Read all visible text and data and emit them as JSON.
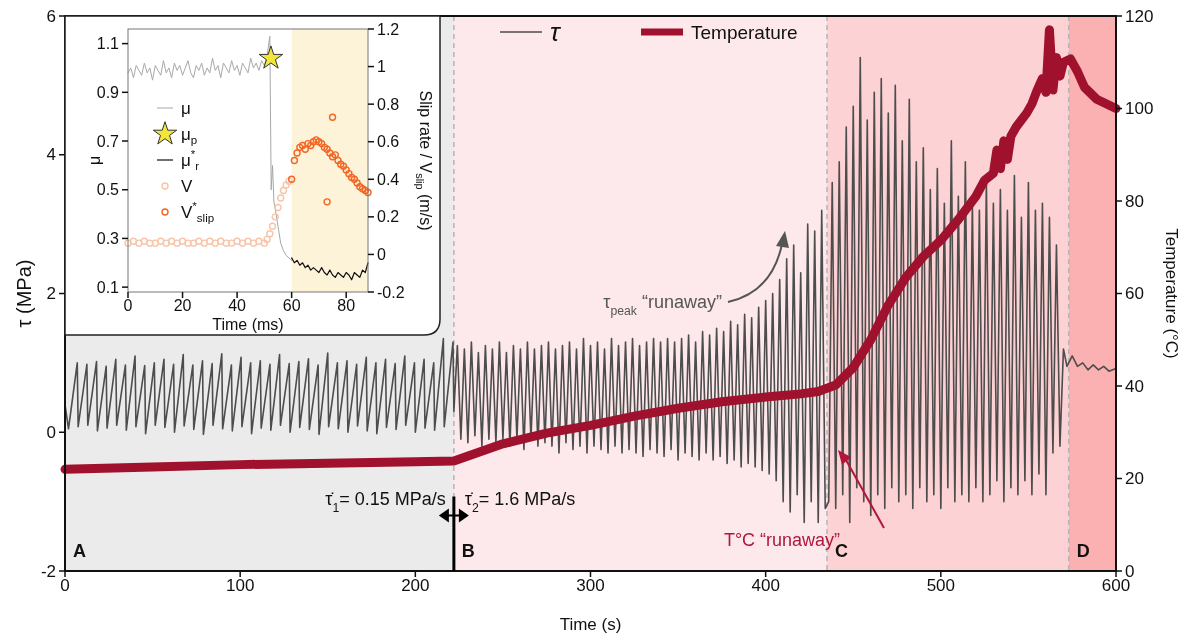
{
  "chart_data": [
    {
      "type": "line",
      "xlabel": "Time (s)",
      "ylabel": "τ (MPa)",
      "y2label": "Temperature (°C)",
      "xlim": [
        0,
        600
      ],
      "xticks": [
        0,
        100,
        200,
        300,
        400,
        500,
        600
      ],
      "ylim": [
        -2,
        6
      ],
      "yticks": [
        -2,
        0,
        2,
        4,
        6
      ],
      "y2lim": [
        0,
        120
      ],
      "y2ticks": [
        0,
        20,
        40,
        60,
        80,
        100,
        120
      ],
      "legend": "top",
      "bands": [
        {
          "axis": "x",
          "from": 0,
          "to": 222,
          "label": "A",
          "color": "#ebebeb"
        },
        {
          "axis": "x",
          "from": 222,
          "to": 435,
          "label": "B",
          "color": "#fde9eb"
        },
        {
          "axis": "x",
          "from": 435,
          "to": 573,
          "label": "C",
          "color": "#fdd2d4"
        },
        {
          "axis": "x",
          "from": 573,
          "to": 600,
          "label": "D",
          "color": "#fbb0b1"
        }
      ],
      "ref_lines": [
        {
          "axis": "x",
          "value": 222,
          "color": "#b5b5b5",
          "line_style": "dashed"
        },
        {
          "axis": "x",
          "value": 435,
          "color": "#b5b5b5",
          "line_style": "dashed"
        },
        {
          "axis": "x",
          "value": 573,
          "color": "#b5b5b5",
          "line_style": "dashed"
        }
      ],
      "annotations": [
        {
          "text": "τ̇$_{1}$= 0.15 MPa/s",
          "x": 222,
          "y": -1.2
        },
        {
          "text": "τ̇$_{2}$= 1.6 MPa/s",
          "x": 222,
          "y": -1.2
        },
        "τ$_{peak}$ “runaway”",
        "T°C “runaway”"
      ],
      "series": [
        {
          "name": "τ",
          "color": "#4d4d4d",
          "x": [
            0,
            2,
            7,
            7.5,
            12.5,
            13,
            18,
            18.5,
            23.5,
            24,
            29,
            29.5,
            34.5,
            35,
            40,
            40.5,
            45.5,
            46,
            51,
            51.5,
            56.5,
            57,
            62,
            62.5,
            67.5,
            68,
            73,
            73.5,
            78.5,
            79,
            84,
            84.5,
            89.5,
            90,
            95,
            95.5,
            100.5,
            101,
            106,
            106.5,
            111.5,
            112,
            117,
            117.5,
            122.5,
            123,
            128,
            128.5,
            133.5,
            134,
            139,
            139.5,
            144.5,
            145,
            150,
            150.5,
            155.5,
            156,
            161,
            161.5,
            166.5,
            167,
            172,
            172.5,
            177.5,
            178,
            183,
            183.5,
            188.5,
            189,
            194,
            194.5,
            199.5,
            200,
            205,
            205.5,
            210.5,
            211,
            216,
            216.5,
            221.5,
            222,
            224,
            226,
            228,
            230,
            232,
            234,
            236,
            238,
            240,
            242,
            244,
            246,
            248,
            250,
            252,
            254,
            256,
            258,
            260,
            262,
            264,
            266,
            268,
            270,
            272,
            274,
            276,
            278,
            280,
            282,
            284,
            286,
            288,
            290,
            292,
            294,
            296,
            298,
            300,
            302,
            304,
            306,
            308,
            310,
            312,
            314,
            316,
            318,
            320,
            322,
            324,
            326,
            328,
            330,
            332,
            334,
            336,
            338,
            340,
            342,
            344,
            346,
            348,
            350,
            352,
            354,
            356,
            358,
            360,
            362,
            364,
            366,
            368,
            370,
            372,
            374,
            376,
            378,
            380,
            382,
            384,
            386,
            388,
            390,
            392,
            394,
            396,
            398,
            400,
            402,
            404,
            406,
            408,
            410,
            412,
            414,
            416,
            418,
            420,
            422,
            424,
            426,
            428,
            430,
            432,
            434,
            436,
            438,
            440,
            442,
            444,
            446,
            448,
            450,
            452,
            454,
            456,
            458,
            460,
            462,
            464,
            466,
            468,
            470,
            472,
            474,
            476,
            478,
            480,
            482,
            484,
            486,
            488,
            490,
            492,
            494,
            496,
            498,
            500,
            502,
            504,
            506,
            508,
            510,
            512,
            514,
            516,
            518,
            520,
            522,
            524,
            526,
            528,
            530,
            532,
            534,
            536,
            538,
            540,
            542,
            544,
            546,
            548,
            550,
            552,
            554,
            556,
            558,
            560,
            562,
            564,
            566,
            568,
            570,
            572,
            575,
            578,
            581,
            584,
            587,
            590,
            593,
            596,
            600
          ],
          "values": [
            0.4,
            0.05,
            1.0,
            0.08,
            0.98,
            0.1,
            1.02,
            0.02,
            0.95,
            0.06,
            1.05,
            0.1,
            0.97,
            0.03,
            1.1,
            0.08,
            0.96,
            -0.02,
            1.0,
            0.1,
            1.05,
            0.07,
            0.98,
            0.0,
            1.12,
            0.09,
            0.97,
            0.04,
            1.03,
            -0.03,
            0.99,
            0.1,
            1.13,
            0.05,
            0.97,
            0.02,
            1.08,
            0.08,
            1.0,
            -0.02,
            1.03,
            0.06,
            0.98,
            0.03,
            1.12,
            0.1,
            0.99,
            0.0,
            1.02,
            0.07,
            1.06,
            0.04,
            0.97,
            -0.03,
            1.14,
            0.08,
            1.0,
            0.05,
            1.03,
            0.0,
            0.98,
            0.09,
            1.08,
            0.02,
            1.0,
            -0.02,
            1.05,
            0.07,
            0.99,
            0.04,
            1.1,
            0.1,
            1.0,
            0.0,
            1.05,
            0.06,
            1.0,
            0.03,
            1.35,
            0.08,
            1.3,
            0.3,
            1.25,
            -0.1,
            1.2,
            -0.15,
            1.3,
            -0.05,
            1.15,
            -0.2,
            1.25,
            -0.1,
            1.2,
            -0.15,
            1.3,
            -0.1,
            1.15,
            -0.2,
            1.25,
            -0.1,
            1.2,
            -0.25,
            1.3,
            -0.1,
            1.2,
            -0.2,
            1.25,
            -0.15,
            1.3,
            -0.2,
            1.2,
            -0.3,
            1.25,
            -0.15,
            1.3,
            -0.25,
            1.2,
            -0.2,
            1.35,
            -0.3,
            1.25,
            -0.2,
            1.3,
            -0.25,
            1.2,
            -0.3,
            1.35,
            -0.2,
            1.25,
            -0.3,
            1.3,
            -0.25,
            1.35,
            -0.3,
            1.25,
            -0.35,
            1.3,
            -0.25,
            1.35,
            -0.3,
            1.3,
            -0.35,
            1.35,
            -0.25,
            1.3,
            -0.4,
            1.35,
            -0.3,
            1.4,
            -0.35,
            1.3,
            -0.4,
            1.45,
            -0.3,
            1.4,
            -0.4,
            1.5,
            -0.35,
            1.45,
            -0.45,
            1.6,
            -0.4,
            1.55,
            -0.5,
            1.7,
            -0.45,
            1.65,
            -0.5,
            1.8,
            -0.55,
            1.9,
            -0.6,
            2.0,
            -0.7,
            2.2,
            -1.0,
            2.5,
            -1.15,
            2.7,
            -0.9,
            2.3,
            -1.3,
            3.0,
            -1.0,
            2.9,
            -1.3,
            3.2,
            -1.1,
            -1.0,
            3.6,
            -1.1,
            3.9,
            -0.9,
            4.4,
            -1.3,
            4.7,
            -0.8,
            5.4,
            -1.0,
            4.5,
            -1.2,
            4.9,
            -0.9,
            5.1,
            -1.1,
            4.6,
            -0.8,
            5.0,
            -1.0,
            4.2,
            -0.9,
            4.8,
            -1.1,
            3.9,
            -0.8,
            4.1,
            -1.0,
            3.5,
            -0.9,
            3.8,
            -1.1,
            3.3,
            -0.8,
            4.2,
            -1.0,
            3.4,
            -0.9,
            3.9,
            -1.0,
            3.3,
            -0.8,
            3.2,
            -1.0,
            3.6,
            -0.9,
            3.3,
            -0.7,
            3.5,
            -1.0,
            3.2,
            -0.8,
            3.7,
            -0.9,
            3.1,
            -0.7,
            3.6,
            -0.9,
            3.2,
            -0.6,
            3.3,
            -0.9,
            3.1,
            -0.3,
            2.7,
            -0.2,
            1.2,
            0.95,
            1.1,
            0.95,
            1.0,
            0.9,
            0.97,
            0.9,
            0.95,
            0.88,
            0.92
          ]
        },
        {
          "name": "Temperature",
          "color": "#a0112e",
          "axis": "y2",
          "x": [
            0,
            50,
            100,
            150,
            200,
            222,
            235,
            250,
            275,
            300,
            325,
            350,
            375,
            400,
            420,
            430,
            440,
            450,
            460,
            470,
            480,
            490,
            500,
            510,
            520,
            525,
            530,
            532,
            534,
            536,
            538,
            540,
            543,
            546,
            549,
            552,
            555,
            558,
            560,
            562,
            564,
            566,
            568,
            570,
            574,
            578,
            582,
            589,
            600
          ],
          "values": [
            22,
            22.5,
            23,
            23.3,
            23.6,
            23.8,
            25.5,
            27.5,
            29.8,
            31.5,
            33.5,
            35.2,
            36.6,
            37.6,
            38.3,
            38.8,
            40.2,
            44,
            50,
            57.5,
            63.5,
            68,
            71.5,
            76,
            81,
            84.5,
            86,
            91,
            87,
            93,
            89,
            94,
            96,
            97.5,
            99,
            101,
            104,
            106.5,
            103.5,
            117,
            104,
            111,
            107,
            110,
            110.7,
            108,
            104.6,
            102,
            100
          ]
        }
      ]
    },
    {
      "type": "line",
      "xlabel": "Time (ms)",
      "ylabel": "μ",
      "y2label": "Slip rate / V$_{slip}$ (m/s)",
      "xlim": [
        0,
        88
      ],
      "xticks": [
        0,
        20,
        40,
        60,
        80
      ],
      "ylim": [
        0.08,
        1.16
      ],
      "yticks": [
        0.1,
        0.3,
        0.5,
        0.7,
        0.9,
        1.1
      ],
      "y2lim": [
        -0.2,
        1.2
      ],
      "y2ticks": [
        -0.2,
        0,
        0.2,
        0.4,
        0.6,
        0.8,
        1,
        1.2
      ],
      "legend": "left",
      "bands": [
        {
          "axis": "x",
          "from": 60,
          "to": 88,
          "color": "#fdf3d9"
        }
      ],
      "series": [
        {
          "name": "μ",
          "color": "#a8a8a8",
          "x": [
            0,
            1,
            2,
            3,
            4,
            5,
            6,
            7,
            8,
            9,
            10,
            11,
            12,
            13,
            14,
            15,
            16,
            17,
            18,
            19,
            20,
            21,
            22,
            23,
            24,
            25,
            26,
            27,
            28,
            29,
            30,
            31,
            32,
            33,
            34,
            35,
            36,
            37,
            38,
            39,
            40,
            41,
            42,
            43,
            44,
            45,
            46,
            47,
            48,
            49,
            50,
            51,
            52,
            52.5,
            53,
            53.5,
            54,
            55,
            56,
            57,
            58,
            59,
            60
          ],
          "values": [
            0.98,
            1.0,
            0.96,
            1.01,
            0.99,
            0.97,
            1.02,
            0.98,
            1.0,
            0.95,
            1.01,
            0.99,
            0.97,
            1.03,
            0.98,
            1.0,
            0.96,
            1.02,
            0.99,
            1.01,
            0.97,
            1.0,
            1.03,
            0.98,
            0.96,
            1.01,
            0.99,
            1.02,
            0.97,
            1.0,
            0.98,
            1.04,
            0.99,
            1.01,
            0.96,
            1.02,
            1.0,
            0.98,
            1.03,
            0.99,
            1.01,
            0.97,
            1.02,
            1.0,
            0.98,
            1.04,
            1.0,
            1.02,
            0.99,
            1.03,
            1.01,
            1.05,
            1.13,
            0.5,
            0.6,
            0.45,
            0.42,
            0.35,
            0.28,
            0.25,
            0.23,
            0.22,
            0.21
          ]
        },
        {
          "name": "μ$_{p}$",
          "type": "scatter",
          "marker": "star",
          "color": "#f2e53c",
          "x": [
            52.4
          ],
          "values": [
            1.04
          ]
        },
        {
          "name": "μ$^{*}$$_{r}$",
          "color": "#111111",
          "x": [
            60,
            61,
            62,
            63,
            64,
            65,
            66,
            67,
            68,
            69,
            70,
            71,
            72,
            73,
            74,
            75,
            76,
            77,
            78,
            79,
            80,
            81,
            82,
            83,
            84,
            85,
            86,
            87,
            88
          ],
          "values": [
            0.22,
            0.2,
            0.21,
            0.19,
            0.2,
            0.18,
            0.19,
            0.17,
            0.18,
            0.17,
            0.16,
            0.18,
            0.16,
            0.15,
            0.17,
            0.15,
            0.14,
            0.16,
            0.15,
            0.14,
            0.16,
            0.15,
            0.13,
            0.16,
            0.15,
            0.14,
            0.17,
            0.16,
            0.2
          ]
        },
        {
          "name": "V",
          "type": "scatter",
          "marker": "circle",
          "axis": "y2",
          "color": "#f8c4a8",
          "x": [
            0,
            2,
            4,
            6,
            8,
            10,
            12,
            14,
            16,
            18,
            20,
            22,
            24,
            26,
            28,
            30,
            32,
            34,
            36,
            38,
            40,
            42,
            44,
            46,
            48,
            50,
            51,
            52,
            53,
            54,
            55,
            56,
            57,
            58,
            59
          ],
          "values": [
            0.06,
            0.07,
            0.06,
            0.07,
            0.06,
            0.06,
            0.07,
            0.06,
            0.07,
            0.06,
            0.07,
            0.06,
            0.06,
            0.07,
            0.06,
            0.07,
            0.06,
            0.07,
            0.06,
            0.06,
            0.07,
            0.06,
            0.07,
            0.06,
            0.07,
            0.06,
            0.08,
            0.11,
            0.15,
            0.2,
            0.25,
            0.3,
            0.34,
            0.37,
            0.39
          ]
        },
        {
          "name": "V$^{*}$$_{slip}$",
          "type": "scatter",
          "marker": "circle",
          "axis": "y2",
          "color": "#f26522",
          "x": [
            60,
            61,
            62,
            63,
            64,
            65,
            66,
            67,
            68,
            69,
            70,
            71,
            72,
            73,
            74,
            75,
            76,
            77,
            78,
            79,
            80,
            81,
            82,
            83,
            84,
            85,
            86,
            87,
            88,
            75,
            73
          ],
          "values": [
            0.4,
            0.5,
            0.54,
            0.57,
            0.58,
            0.56,
            0.59,
            0.58,
            0.6,
            0.61,
            0.6,
            0.59,
            0.57,
            0.56,
            0.54,
            0.52,
            0.53,
            0.5,
            0.48,
            0.47,
            0.45,
            0.43,
            0.41,
            0.4,
            0.38,
            0.36,
            0.35,
            0.34,
            0.33,
            0.73,
            0.28
          ]
        }
      ]
    }
  ]
}
